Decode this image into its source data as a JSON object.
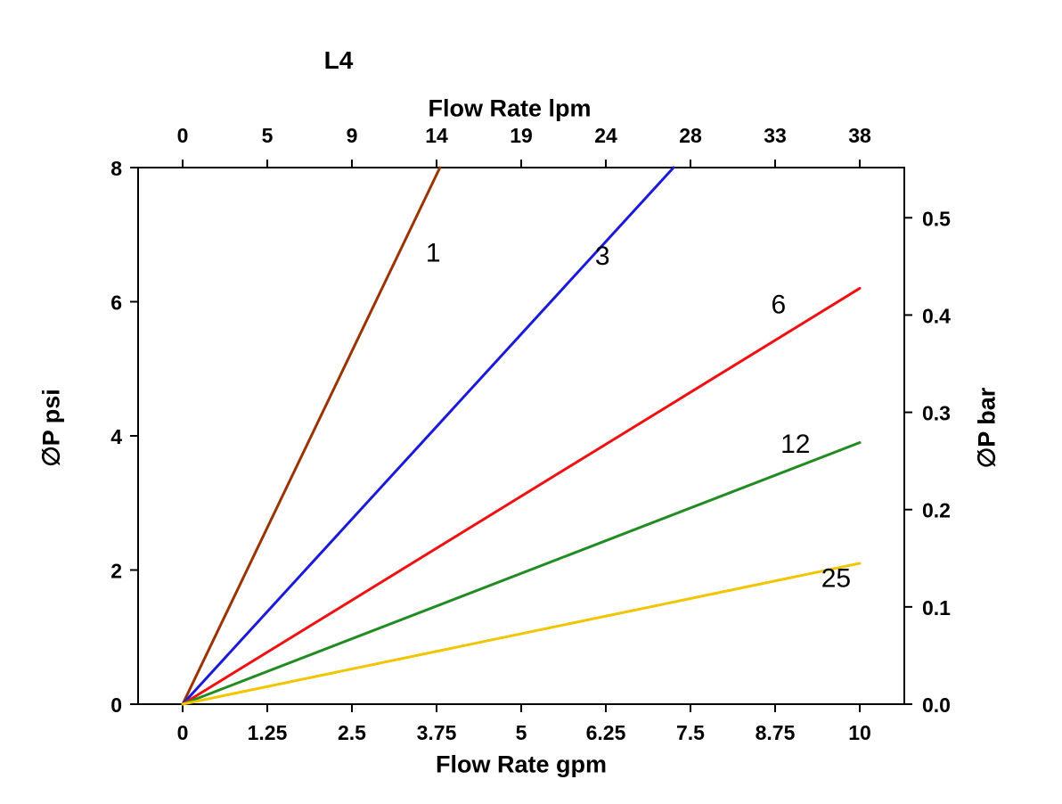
{
  "page": {
    "background": "#ffffff",
    "text_color": "#000000"
  },
  "chart_data": {
    "type": "line",
    "title": "L4",
    "grid": false,
    "legend": "inline-labels",
    "axes": {
      "top": {
        "label": "Flow Rate lpm",
        "tick_labels": [
          "0",
          "5",
          "9",
          "14",
          "19",
          "24",
          "28",
          "33",
          "38"
        ]
      },
      "bottom": {
        "label": "Flow Rate gpm",
        "ticks": [
          0,
          1.25,
          2.5,
          3.75,
          5,
          6.25,
          7.5,
          8.75,
          10
        ],
        "tick_labels": [
          "0",
          "1.25",
          "2.5",
          "3.75",
          "5",
          "6.25",
          "7.5",
          "8.75",
          "10"
        ],
        "range": [
          0,
          10
        ]
      },
      "left": {
        "label": "∅P psi",
        "ticks": [
          0,
          2,
          4,
          6,
          8
        ],
        "tick_labels": [
          "0",
          "2",
          "4",
          "6",
          "8"
        ],
        "range": [
          0,
          8
        ]
      },
      "right": {
        "label": "∅P bar",
        "ticks": [
          0.0,
          0.1,
          0.2,
          0.3,
          0.4,
          0.5
        ],
        "tick_labels": [
          "0.0",
          "0.1",
          "0.2",
          "0.3",
          "0.4",
          "0.5"
        ],
        "psi_per_bar": 14.5038
      }
    },
    "series": [
      {
        "name": "1",
        "color": "#993300",
        "points": [
          [
            0,
            0
          ],
          [
            3.8,
            8
          ]
        ],
        "label_at": [
          3.7,
          6.6
        ]
      },
      {
        "name": "3",
        "color": "#1a1ad9",
        "points": [
          [
            0,
            0
          ],
          [
            7.25,
            8
          ]
        ],
        "label_at": [
          6.2,
          6.55
        ]
      },
      {
        "name": "6",
        "color": "#ee1111",
        "points": [
          [
            0,
            0
          ],
          [
            10,
            6.2
          ]
        ],
        "label_at": [
          8.8,
          5.83
        ]
      },
      {
        "name": "12",
        "color": "#228b22",
        "points": [
          [
            0,
            0
          ],
          [
            10,
            3.9
          ]
        ],
        "label_at": [
          9.05,
          3.75
        ]
      },
      {
        "name": "25",
        "color": "#f2c500",
        "points": [
          [
            0,
            0
          ],
          [
            10,
            2.1
          ]
        ],
        "label_at": [
          9.65,
          1.75
        ]
      }
    ]
  }
}
